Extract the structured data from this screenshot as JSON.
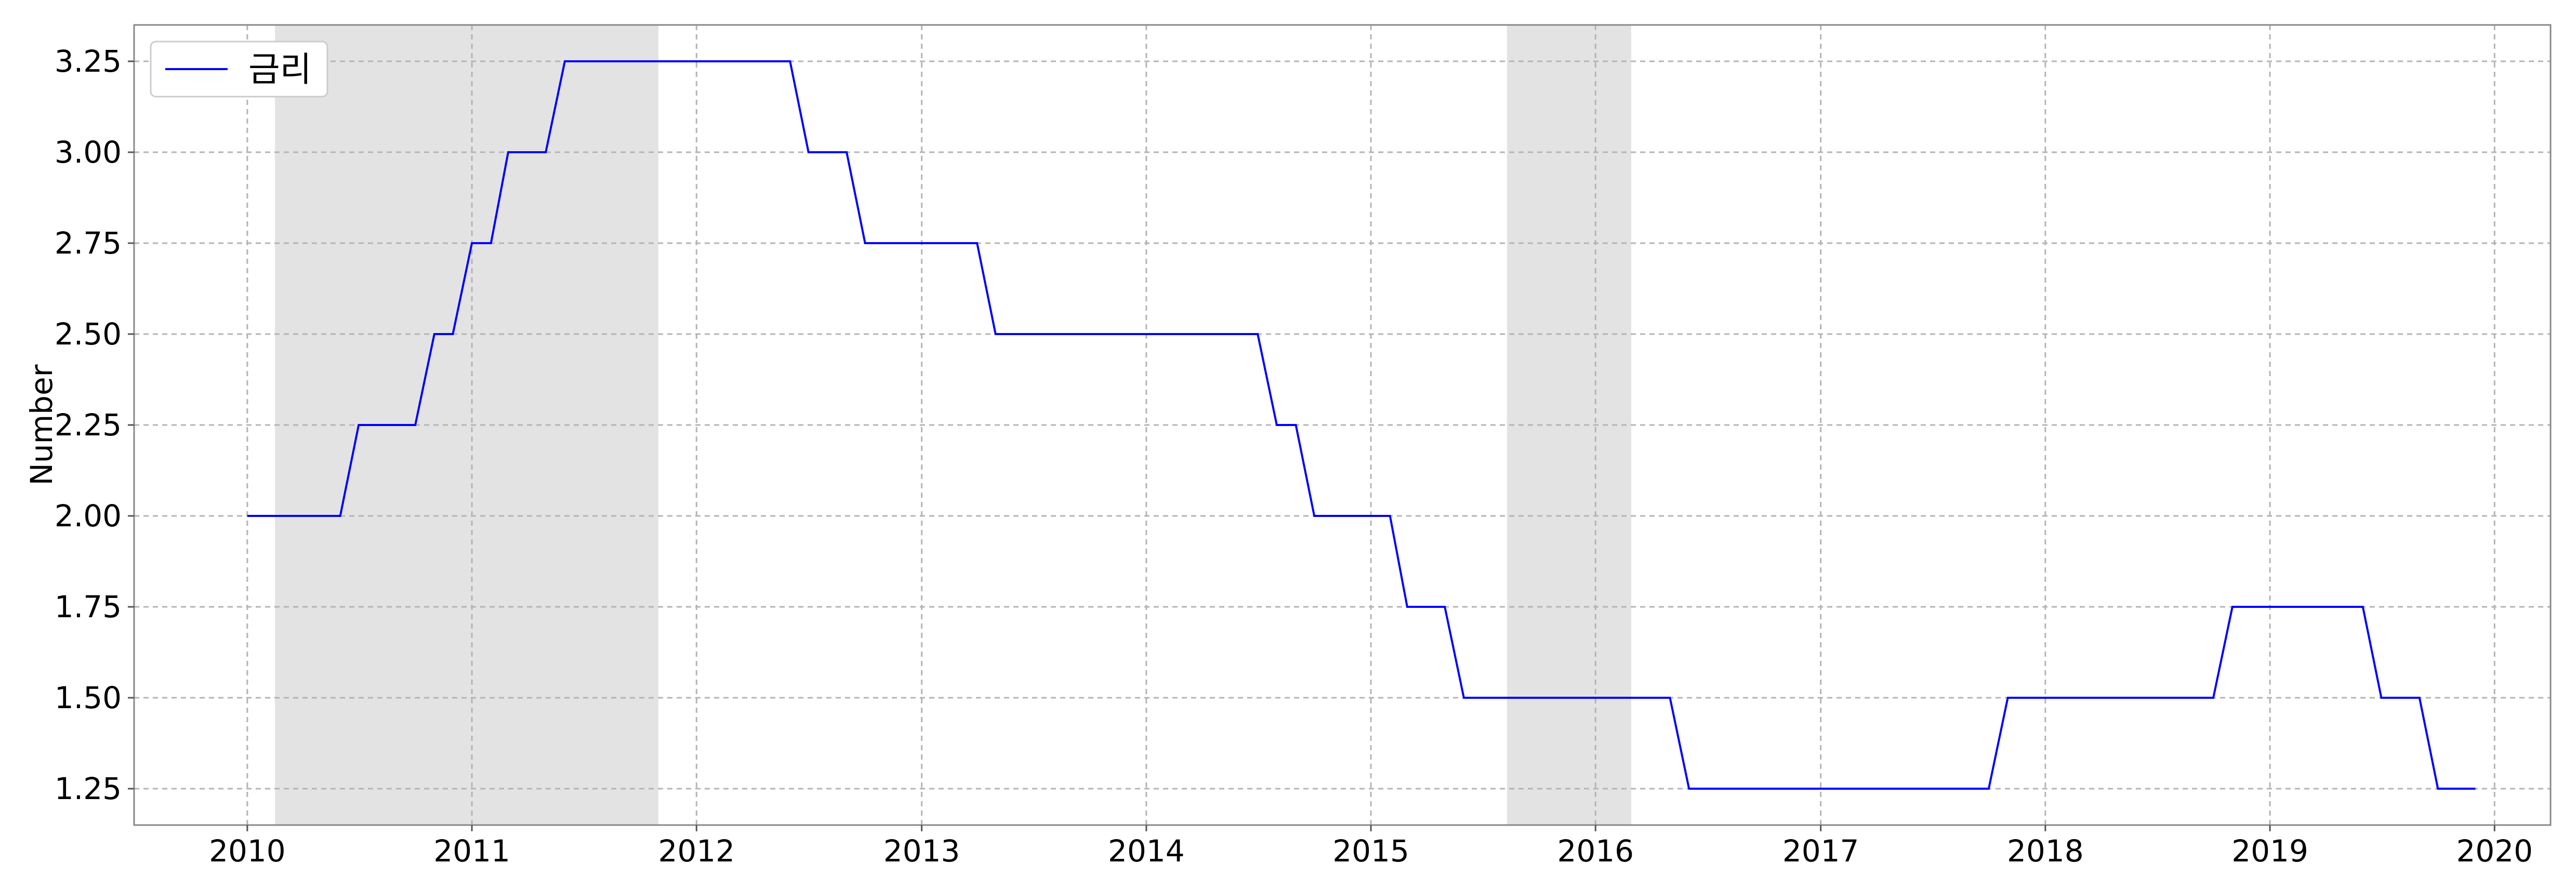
{
  "chart_data": {
    "type": "line",
    "title": "",
    "xlabel": "",
    "ylabel": "Number",
    "x_ticks": [
      "2010",
      "2011",
      "2012",
      "2013",
      "2014",
      "2015",
      "2016",
      "2017",
      "2018",
      "2019",
      "2020"
    ],
    "y_ticks": [
      "1.25",
      "1.50",
      "1.75",
      "2.00",
      "2.25",
      "2.50",
      "2.75",
      "3.00",
      "3.25"
    ],
    "xlim": [
      "2009-07-01",
      "2020-04-01"
    ],
    "ylim": [
      1.15,
      3.35
    ],
    "grid": true,
    "grid_style": "dashed",
    "legend_position": "top-left",
    "shaded_periods": [
      {
        "start": "2010-02-15",
        "end": "2011-10-31"
      },
      {
        "start": "2015-08-10",
        "end": "2016-02-28"
      }
    ],
    "series": [
      {
        "name": "금리",
        "color": "#0000ff",
        "points": [
          {
            "x": "2010-01-01",
            "y": 2.0
          },
          {
            "x": "2010-06-01",
            "y": 2.0
          },
          {
            "x": "2010-07-01",
            "y": 2.25
          },
          {
            "x": "2010-10-01",
            "y": 2.25
          },
          {
            "x": "2010-11-01",
            "y": 2.5
          },
          {
            "x": "2010-12-01",
            "y": 2.5
          },
          {
            "x": "2011-01-01",
            "y": 2.75
          },
          {
            "x": "2011-02-01",
            "y": 2.75
          },
          {
            "x": "2011-03-01",
            "y": 3.0
          },
          {
            "x": "2011-05-01",
            "y": 3.0
          },
          {
            "x": "2011-06-01",
            "y": 3.25
          },
          {
            "x": "2012-06-01",
            "y": 3.25
          },
          {
            "x": "2012-07-01",
            "y": 3.0
          },
          {
            "x": "2012-09-01",
            "y": 3.0
          },
          {
            "x": "2012-10-01",
            "y": 2.75
          },
          {
            "x": "2013-04-01",
            "y": 2.75
          },
          {
            "x": "2013-05-01",
            "y": 2.5
          },
          {
            "x": "2014-07-01",
            "y": 2.5
          },
          {
            "x": "2014-08-01",
            "y": 2.25
          },
          {
            "x": "2014-09-01",
            "y": 2.25
          },
          {
            "x": "2014-10-01",
            "y": 2.0
          },
          {
            "x": "2015-02-01",
            "y": 2.0
          },
          {
            "x": "2015-03-01",
            "y": 1.75
          },
          {
            "x": "2015-05-01",
            "y": 1.75
          },
          {
            "x": "2015-06-01",
            "y": 1.5
          },
          {
            "x": "2016-05-01",
            "y": 1.5
          },
          {
            "x": "2016-06-01",
            "y": 1.25
          },
          {
            "x": "2017-10-01",
            "y": 1.25
          },
          {
            "x": "2017-11-01",
            "y": 1.5
          },
          {
            "x": "2018-10-01",
            "y": 1.5
          },
          {
            "x": "2018-11-01",
            "y": 1.75
          },
          {
            "x": "2019-06-01",
            "y": 1.75
          },
          {
            "x": "2019-07-01",
            "y": 1.5
          },
          {
            "x": "2019-09-01",
            "y": 1.5
          },
          {
            "x": "2019-10-01",
            "y": 1.25
          },
          {
            "x": "2019-12-01",
            "y": 1.25
          }
        ]
      }
    ]
  }
}
